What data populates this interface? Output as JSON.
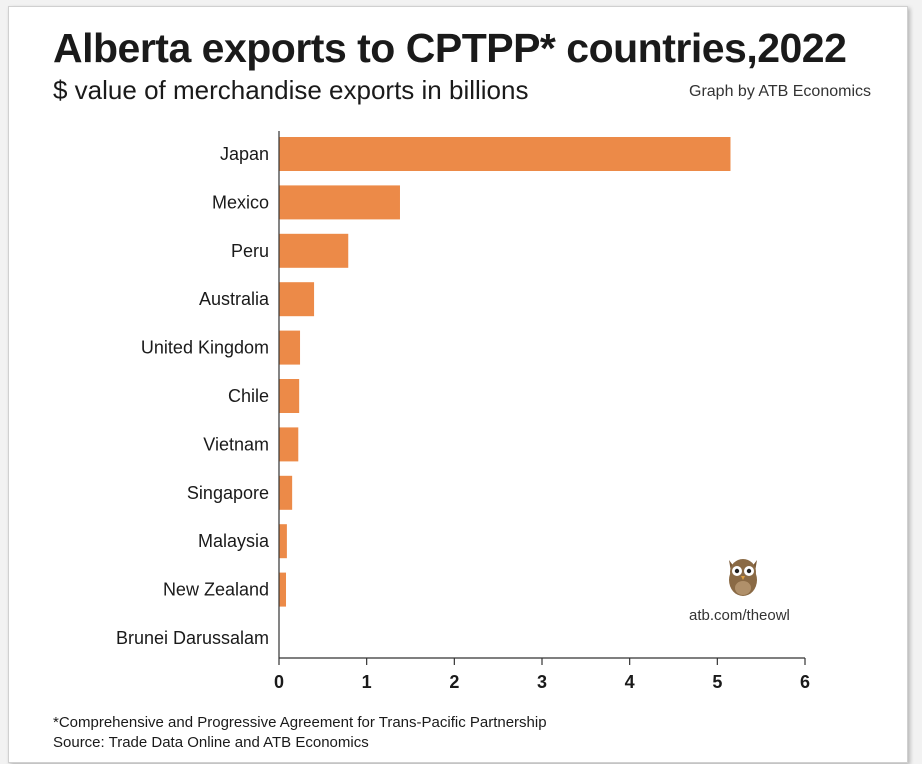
{
  "chart_data": {
    "type": "bar",
    "orientation": "horizontal",
    "title": "Alberta exports to CPTPP* countries,2022",
    "subtitle": "$ value of merchandise exports in billions",
    "categories": [
      "Japan",
      "Mexico",
      "Peru",
      "Australia",
      "United Kingdom",
      "Chile",
      "Vietnam",
      "Singapore",
      "Malaysia",
      "New Zealand",
      "Brunei Darussalam"
    ],
    "values": [
      5.15,
      1.38,
      0.79,
      0.4,
      0.24,
      0.23,
      0.22,
      0.15,
      0.09,
      0.08,
      0
    ],
    "xlim": [
      0,
      6
    ],
    "x_ticks": [
      "0",
      "1",
      "2",
      "3",
      "4",
      "5",
      "6"
    ],
    "bar_color": "#ec8a48",
    "grid": false,
    "xlabel": "",
    "ylabel": ""
  },
  "credit": "Graph by ATB Economics",
  "owl_url": "atb.com/theowl",
  "footnote": "*Comprehensive and Progressive Agreement for Trans-Pacific Partnership",
  "source": "Source: Trade Data Online and ATB Economics"
}
